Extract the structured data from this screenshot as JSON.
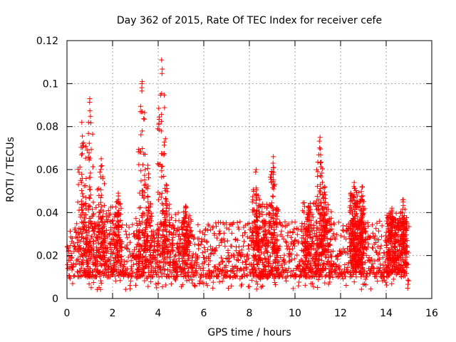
{
  "chart_data": {
    "type": "scatter",
    "title": "Day 362 of 2015, Rate Of TEC Index for receiver cefe",
    "xlabel": "GPS time / hours",
    "ylabel": "ROTI / TECUs",
    "xlim": [
      0,
      16
    ],
    "ylim": [
      0,
      0.12
    ],
    "xticks": [
      0,
      2,
      4,
      6,
      8,
      10,
      12,
      14,
      16
    ],
    "yticks": [
      0,
      0.02,
      0.04,
      0.06,
      0.08,
      0.1,
      0.12
    ],
    "xtick_labels": [
      "0",
      "2",
      "4",
      "6",
      "8",
      "10",
      "12",
      "14",
      "16"
    ],
    "ytick_labels": [
      "0",
      "0.02",
      "0.04",
      "0.06",
      "0.08",
      "0.1",
      "0.12"
    ],
    "grid": true,
    "marker": "+",
    "color": "#ff0000",
    "x_extent_hours": [
      0,
      15
    ],
    "baseline_band": [
      0.008,
      0.03
    ],
    "spikes": [
      {
        "x": 0.65,
        "peak": 0.082
      },
      {
        "x": 1.0,
        "peak": 0.093
      },
      {
        "x": 1.5,
        "peak": 0.065
      },
      {
        "x": 2.25,
        "peak": 0.049
      },
      {
        "x": 3.3,
        "peak": 0.101
      },
      {
        "x": 3.55,
        "peak": 0.062
      },
      {
        "x": 4.15,
        "peak": 0.111
      },
      {
        "x": 4.35,
        "peak": 0.053
      },
      {
        "x": 5.2,
        "peak": 0.043
      },
      {
        "x": 8.3,
        "peak": 0.06
      },
      {
        "x": 9.05,
        "peak": 0.066
      },
      {
        "x": 10.6,
        "peak": 0.043
      },
      {
        "x": 11.1,
        "peak": 0.075
      },
      {
        "x": 11.3,
        "peak": 0.052
      },
      {
        "x": 12.6,
        "peak": 0.054
      },
      {
        "x": 12.95,
        "peak": 0.052
      },
      {
        "x": 14.25,
        "peak": 0.042
      },
      {
        "x": 14.75,
        "peak": 0.046
      }
    ]
  }
}
